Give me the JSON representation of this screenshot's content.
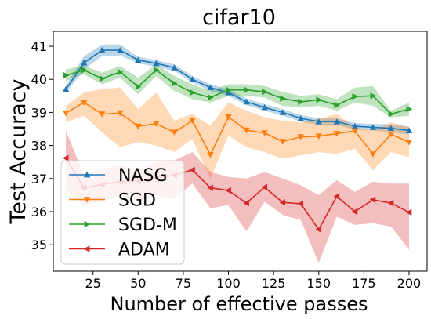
{
  "chart_data": {
    "type": "line",
    "title": "cifar10",
    "xlabel": "Number of effective passes",
    "ylabel": "Test Accuracy",
    "xlim": [
      3,
      210
    ],
    "ylim": [
      34.2,
      41.45
    ],
    "xticks": [
      25,
      50,
      75,
      100,
      125,
      150,
      175,
      200
    ],
    "yticks": [
      35,
      36,
      37,
      38,
      39,
      40,
      41
    ],
    "legend_position": "lower-left",
    "grid": false,
    "x": [
      10,
      20,
      30,
      40,
      50,
      60,
      70,
      80,
      90,
      100,
      110,
      120,
      130,
      140,
      150,
      160,
      170,
      180,
      190,
      200
    ],
    "series": [
      {
        "name": "NASG",
        "color": "#1f77b4",
        "marker": "triangle-up",
        "values": [
          39.7,
          40.5,
          40.88,
          40.88,
          40.58,
          40.48,
          40.35,
          40.0,
          39.75,
          39.6,
          39.32,
          39.15,
          39.0,
          38.82,
          38.72,
          38.72,
          38.58,
          38.55,
          38.52,
          38.45
        ],
        "lower": [
          39.58,
          40.3,
          40.7,
          40.72,
          40.48,
          40.38,
          40.25,
          39.9,
          39.65,
          39.5,
          39.22,
          39.05,
          38.9,
          38.72,
          38.62,
          38.62,
          38.48,
          38.45,
          38.4,
          38.33
        ],
        "upper": [
          39.82,
          40.7,
          41.05,
          41.05,
          40.68,
          40.58,
          40.45,
          40.1,
          39.85,
          39.7,
          39.42,
          39.25,
          39.1,
          38.92,
          38.82,
          38.82,
          38.68,
          38.65,
          38.64,
          38.57
        ]
      },
      {
        "name": "SGD",
        "color": "#ff7f0e",
        "marker": "triangle-down",
        "values": [
          38.98,
          39.3,
          38.95,
          38.98,
          38.58,
          38.66,
          38.4,
          38.75,
          37.72,
          38.86,
          38.46,
          38.38,
          38.12,
          38.26,
          38.28,
          38.36,
          38.44,
          37.74,
          38.34,
          38.1
        ],
        "lower": [
          38.7,
          38.9,
          38.4,
          37.95,
          38.1,
          38.0,
          37.8,
          38.2,
          37.0,
          38.3,
          37.95,
          37.8,
          37.6,
          37.7,
          37.8,
          37.75,
          37.9,
          37.25,
          37.8,
          37.65
        ],
        "upper": [
          39.2,
          39.6,
          39.7,
          39.75,
          39.1,
          39.6,
          38.75,
          38.95,
          38.6,
          39.3,
          39.05,
          38.85,
          38.75,
          38.7,
          38.8,
          38.95,
          38.55,
          38.45,
          38.7,
          38.55
        ]
      },
      {
        "name": "SGD-M",
        "color": "#2ca02c",
        "marker": "triangle-right",
        "values": [
          40.12,
          40.28,
          40.02,
          40.22,
          39.78,
          40.28,
          39.88,
          39.6,
          39.45,
          39.68,
          39.68,
          39.62,
          39.42,
          39.32,
          39.38,
          39.22,
          39.48,
          39.5,
          38.95,
          39.1
        ],
        "lower": [
          39.95,
          40.15,
          39.85,
          40.05,
          39.55,
          40.1,
          39.65,
          39.4,
          39.3,
          39.5,
          39.5,
          39.45,
          39.2,
          39.15,
          39.2,
          39.05,
          39.3,
          39.2,
          38.85,
          38.9
        ],
        "upper": [
          40.3,
          40.42,
          40.2,
          40.4,
          40.05,
          40.45,
          40.1,
          39.85,
          39.65,
          39.85,
          39.85,
          39.8,
          39.62,
          39.5,
          39.55,
          39.4,
          39.75,
          39.8,
          39.05,
          39.3
        ]
      },
      {
        "name": "ADAM",
        "color": "#d62728",
        "marker": "triangle-left",
        "values": [
          37.62,
          36.72,
          36.82,
          36.9,
          36.92,
          37.02,
          37.1,
          37.26,
          36.72,
          36.64,
          36.26,
          36.74,
          36.28,
          36.24,
          35.46,
          36.46,
          36.0,
          36.36,
          36.26,
          35.98
        ],
        "lower": [
          36.65,
          36.2,
          36.3,
          36.5,
          36.35,
          36.5,
          36.4,
          36.85,
          36.1,
          36.2,
          35.4,
          36.3,
          35.9,
          35.75,
          34.45,
          35.85,
          35.6,
          35.65,
          35.55,
          34.85
        ],
        "upper": [
          38.45,
          37.1,
          37.3,
          37.4,
          37.25,
          37.5,
          37.55,
          37.8,
          37.2,
          37.05,
          37.0,
          37.2,
          37.0,
          36.8,
          36.5,
          36.95,
          36.6,
          36.9,
          36.85,
          36.85
        ]
      }
    ]
  }
}
